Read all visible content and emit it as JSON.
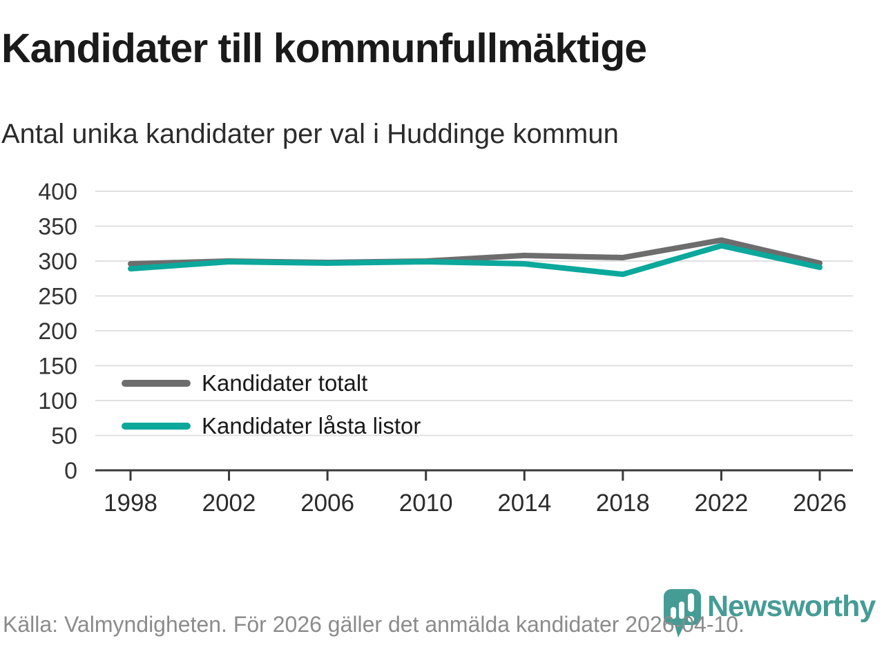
{
  "header": {
    "title": "Kandidater till kommunfullmäktige",
    "subtitle": "Antal unika kandidater per val i Huddinge kommun"
  },
  "chart_data": {
    "type": "line",
    "x": [
      1998,
      2002,
      2006,
      2010,
      2014,
      2018,
      2022,
      2026
    ],
    "series": [
      {
        "name": "Kandidater totalt",
        "color": "#6e6d6d",
        "values": [
          296,
          300,
          298,
          300,
          308,
          305,
          330,
          297
        ]
      },
      {
        "name": "Kandidater låsta listor",
        "color": "#0ca89c",
        "values": [
          289,
          299,
          297,
          299,
          296,
          281,
          322,
          291
        ]
      }
    ],
    "title": "Kandidater till kommunfullmäktige",
    "subtitle": "Antal unika kandidater per val i Huddinge kommun",
    "xlabel": "",
    "ylabel": "",
    "ylim": [
      0,
      400
    ],
    "y_ticks": [
      0,
      50,
      100,
      150,
      200,
      250,
      300,
      350,
      400
    ],
    "grid": "horizontal",
    "legend_position": "inside-left-bottom"
  },
  "footer": {
    "source_text": "Källa: Valmyndigheten. För 2026 gäller det anmälda kandidater 2026-04-10."
  },
  "branding": {
    "logo_text": "Newsworthy",
    "logo_color": "#459c95"
  },
  "colors": {
    "gridline": "#e0e0e0",
    "axis": "#3a3a3a",
    "tick_label": "#333333",
    "footer_text": "#8b8b8b"
  }
}
